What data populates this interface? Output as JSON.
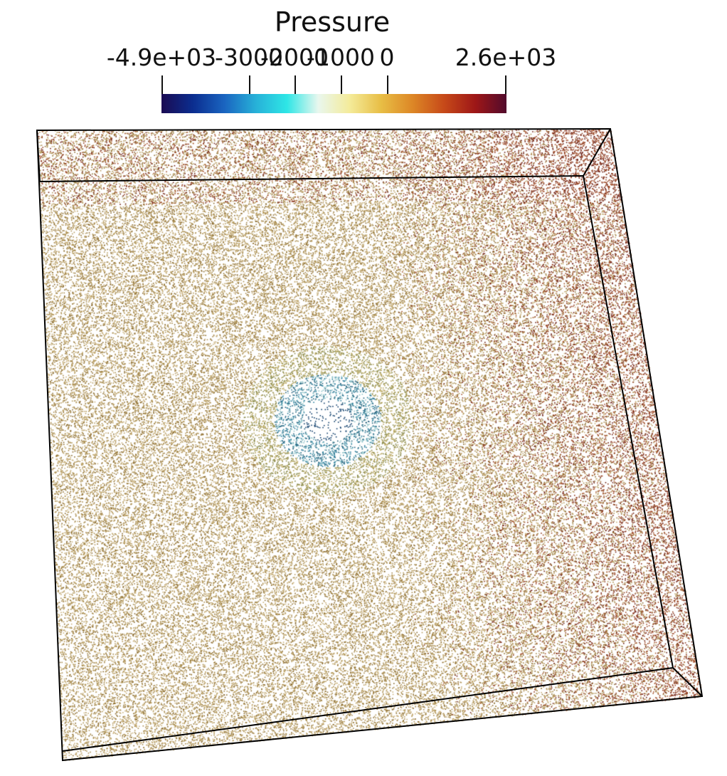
{
  "legend": {
    "title": "Pressure",
    "colormap": [
      "#1a0b52",
      "#0b2d8f",
      "#1a64c0",
      "#27b0d8",
      "#2ee6e6",
      "#e9f7ee",
      "#f4eb9a",
      "#e8be45",
      "#dd8726",
      "#c74a19",
      "#9e1717",
      "#520a2c"
    ],
    "range": [
      -4900,
      2600
    ],
    "ticks": [
      {
        "value": -4900,
        "label": "-4.9e+03"
      },
      {
        "value": -3000,
        "label": "-3000"
      },
      {
        "value": -2000,
        "label": "-2000"
      },
      {
        "value": -1000,
        "label": "-1000"
      },
      {
        "value": 0,
        "label": "0"
      },
      {
        "value": 2600,
        "label": "2.6e+03"
      }
    ]
  },
  "scene": {
    "particle_colors": {
      "background": [
        "#c9b07a",
        "#a88b4c",
        "#8a6a2c",
        "#b59a5c"
      ],
      "edge": [
        "#8f3a1c",
        "#6d1f14",
        "#a4502a"
      ],
      "vortex": [
        "#2b7f9c",
        "#1f5f7a",
        "#8ec3c8",
        "#0e3d6a"
      ]
    }
  }
}
